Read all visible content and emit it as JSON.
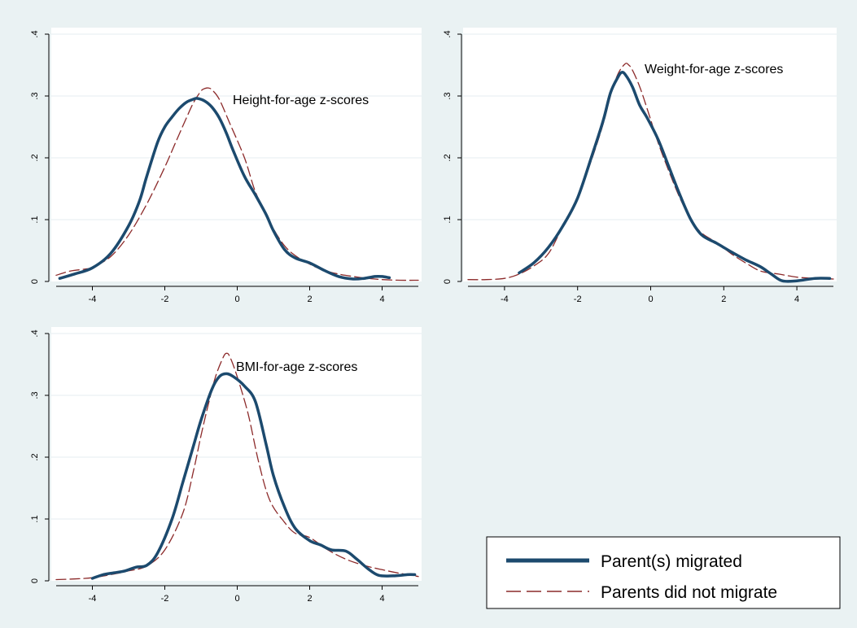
{
  "colors": {
    "background": "#eaf2f3",
    "plot_area": "#ffffff",
    "grid": "#e6eef0",
    "series_migrated": "#1c4a6e",
    "series_not_migrated": "#8c2a2a"
  },
  "legend": {
    "items": [
      {
        "label": "Parent(s) migrated",
        "style": "solid",
        "color": "#1c4a6e"
      },
      {
        "label": "Parents did not migrate",
        "style": "dashed",
        "color": "#8c2a2a"
      }
    ],
    "placement": "bottom-right"
  },
  "chart_data": [
    {
      "type": "line",
      "title": "",
      "annotation": "Height-for-age z-scores",
      "xlabel": "",
      "ylabel": "",
      "xlim": [
        -5,
        5
      ],
      "ylim": [
        0,
        0.4
      ],
      "xticks": [
        -4,
        -2,
        0,
        2,
        4
      ],
      "xtick_labels": [
        "-4",
        "-2",
        "0",
        "2",
        "4"
      ],
      "yticks": [
        0,
        0.1,
        0.2,
        0.3,
        0.4
      ],
      "ytick_labels": [
        "0",
        ".1",
        ".2",
        ".3",
        ".4"
      ],
      "grid": true,
      "series": [
        {
          "name": "Parent(s) migrated",
          "style": "solid",
          "x": [
            -4.9,
            -4.5,
            -4,
            -3.5,
            -3,
            -2.7,
            -2.5,
            -2.2,
            -2,
            -1.8,
            -1.6,
            -1.4,
            -1.2,
            -1.1,
            -0.9,
            -0.7,
            -0.5,
            -0.3,
            -0.1,
            0.2,
            0.5,
            0.8,
            1,
            1.3,
            1.6,
            2,
            2.4,
            2.8,
            3.2,
            3.5,
            3.8,
            4,
            4.2
          ],
          "y": [
            0.005,
            0.012,
            0.022,
            0.045,
            0.09,
            0.13,
            0.17,
            0.225,
            0.25,
            0.266,
            0.28,
            0.29,
            0.295,
            0.296,
            0.292,
            0.282,
            0.265,
            0.24,
            0.21,
            0.17,
            0.14,
            0.108,
            0.082,
            0.052,
            0.038,
            0.03,
            0.018,
            0.008,
            0.004,
            0.005,
            0.008,
            0.008,
            0.006
          ]
        },
        {
          "name": "Parents did not migrate",
          "style": "dashed",
          "x": [
            -5,
            -4.6,
            -4.2,
            -4,
            -3.5,
            -3,
            -2.5,
            -2,
            -1.7,
            -1.4,
            -1.2,
            -1,
            -0.9,
            -0.8,
            -0.7,
            -0.5,
            -0.2,
            0.2,
            0.5,
            0.8,
            1,
            1.3,
            1.6,
            2,
            2.4,
            2.8,
            3.2,
            3.6,
            4,
            4.5,
            5
          ],
          "y": [
            0.01,
            0.017,
            0.02,
            0.023,
            0.04,
            0.075,
            0.125,
            0.185,
            0.225,
            0.265,
            0.29,
            0.308,
            0.312,
            0.313,
            0.31,
            0.295,
            0.255,
            0.2,
            0.145,
            0.11,
            0.085,
            0.058,
            0.042,
            0.028,
            0.018,
            0.012,
            0.008,
            0.005,
            0.003,
            0.002,
            0.002
          ]
        }
      ]
    },
    {
      "type": "line",
      "title": "",
      "annotation": "Weight-for-age z-scores",
      "xlabel": "",
      "ylabel": "",
      "xlim": [
        -5,
        5
      ],
      "ylim": [
        0,
        0.4
      ],
      "xticks": [
        -4,
        -2,
        0,
        2,
        4
      ],
      "xtick_labels": [
        "-4",
        "-2",
        "0",
        "2",
        "4"
      ],
      "yticks": [
        0,
        0.1,
        0.2,
        0.3,
        0.4
      ],
      "ytick_labels": [
        "0",
        ".1",
        ".2",
        ".3",
        ".4"
      ],
      "grid": true,
      "series": [
        {
          "name": "Parent(s) migrated",
          "style": "solid",
          "x": [
            -3.6,
            -3.2,
            -2.8,
            -2.4,
            -2,
            -1.6,
            -1.3,
            -1.1,
            -0.9,
            -0.8,
            -0.7,
            -0.5,
            -0.3,
            -0.1,
            0.2,
            0.5,
            0.8,
            1.1,
            1.4,
            1.8,
            2.2,
            2.6,
            3,
            3.3,
            3.6,
            4,
            4.5,
            4.9
          ],
          "y": [
            0.014,
            0.03,
            0.055,
            0.09,
            0.135,
            0.205,
            0.26,
            0.305,
            0.33,
            0.338,
            0.335,
            0.315,
            0.285,
            0.265,
            0.23,
            0.185,
            0.14,
            0.1,
            0.075,
            0.062,
            0.048,
            0.035,
            0.024,
            0.012,
            0.001,
            0.001,
            0.005,
            0.005
          ]
        },
        {
          "name": "Parents did not migrate",
          "style": "dashed",
          "x": [
            -5,
            -4.5,
            -4,
            -3.6,
            -3.2,
            -2.8,
            -2.4,
            -2,
            -1.6,
            -1.3,
            -1.1,
            -0.9,
            -0.7,
            -0.6,
            -0.5,
            -0.3,
            -0.1,
            0.2,
            0.5,
            0.8,
            1.1,
            1.4,
            1.8,
            2.2,
            2.6,
            3,
            3.5,
            4,
            4.5,
            5
          ],
          "y": [
            0.003,
            0.003,
            0.005,
            0.012,
            0.025,
            0.045,
            0.09,
            0.135,
            0.2,
            0.255,
            0.3,
            0.335,
            0.352,
            0.35,
            0.342,
            0.315,
            0.28,
            0.225,
            0.178,
            0.135,
            0.1,
            0.078,
            0.063,
            0.045,
            0.03,
            0.017,
            0.012,
            0.007,
            0.005,
            0.004
          ]
        }
      ]
    },
    {
      "type": "line",
      "title": "",
      "annotation": "BMI-for-age z-scores",
      "xlabel": "",
      "ylabel": "",
      "xlim": [
        -5,
        5
      ],
      "ylim": [
        0,
        0.4
      ],
      "xticks": [
        -4,
        -2,
        0,
        2,
        4
      ],
      "xtick_labels": [
        "-4",
        "-2",
        "0",
        "2",
        "4"
      ],
      "yticks": [
        0,
        0.1,
        0.2,
        0.3,
        0.4
      ],
      "ytick_labels": [
        "0",
        ".1",
        ".2",
        ".3",
        ".4"
      ],
      "grid": true,
      "series": [
        {
          "name": "Parent(s) migrated",
          "style": "solid",
          "x": [
            -4,
            -3.7,
            -3.4,
            -3.1,
            -2.8,
            -2.5,
            -2.2,
            -1.8,
            -1.5,
            -1.2,
            -1,
            -0.7,
            -0.5,
            -0.3,
            -0.1,
            0.2,
            0.5,
            0.8,
            1,
            1.3,
            1.6,
            2,
            2.3,
            2.6,
            3,
            3.3,
            3.6,
            3.9,
            4.3,
            4.7,
            4.9
          ],
          "y": [
            0.004,
            0.01,
            0.013,
            0.016,
            0.022,
            0.025,
            0.045,
            0.1,
            0.16,
            0.22,
            0.26,
            0.31,
            0.33,
            0.335,
            0.33,
            0.315,
            0.29,
            0.22,
            0.17,
            0.12,
            0.085,
            0.065,
            0.058,
            0.05,
            0.048,
            0.035,
            0.02,
            0.009,
            0.008,
            0.01,
            0.01
          ]
        },
        {
          "name": "Parents did not migrate",
          "style": "dashed",
          "x": [
            -5,
            -4.5,
            -4,
            -3.5,
            -3,
            -2.5,
            -2,
            -1.5,
            -1.2,
            -1,
            -0.8,
            -0.6,
            -0.4,
            -0.3,
            -0.2,
            0,
            0.3,
            0.6,
            0.9,
            1.3,
            1.6,
            2,
            2.5,
            3,
            3.5,
            4,
            4.5,
            5
          ],
          "y": [
            0.002,
            0.003,
            0.005,
            0.01,
            0.016,
            0.024,
            0.05,
            0.11,
            0.18,
            0.235,
            0.285,
            0.33,
            0.36,
            0.368,
            0.362,
            0.33,
            0.27,
            0.19,
            0.13,
            0.095,
            0.077,
            0.07,
            0.05,
            0.035,
            0.025,
            0.018,
            0.012,
            0.007
          ]
        }
      ]
    }
  ]
}
